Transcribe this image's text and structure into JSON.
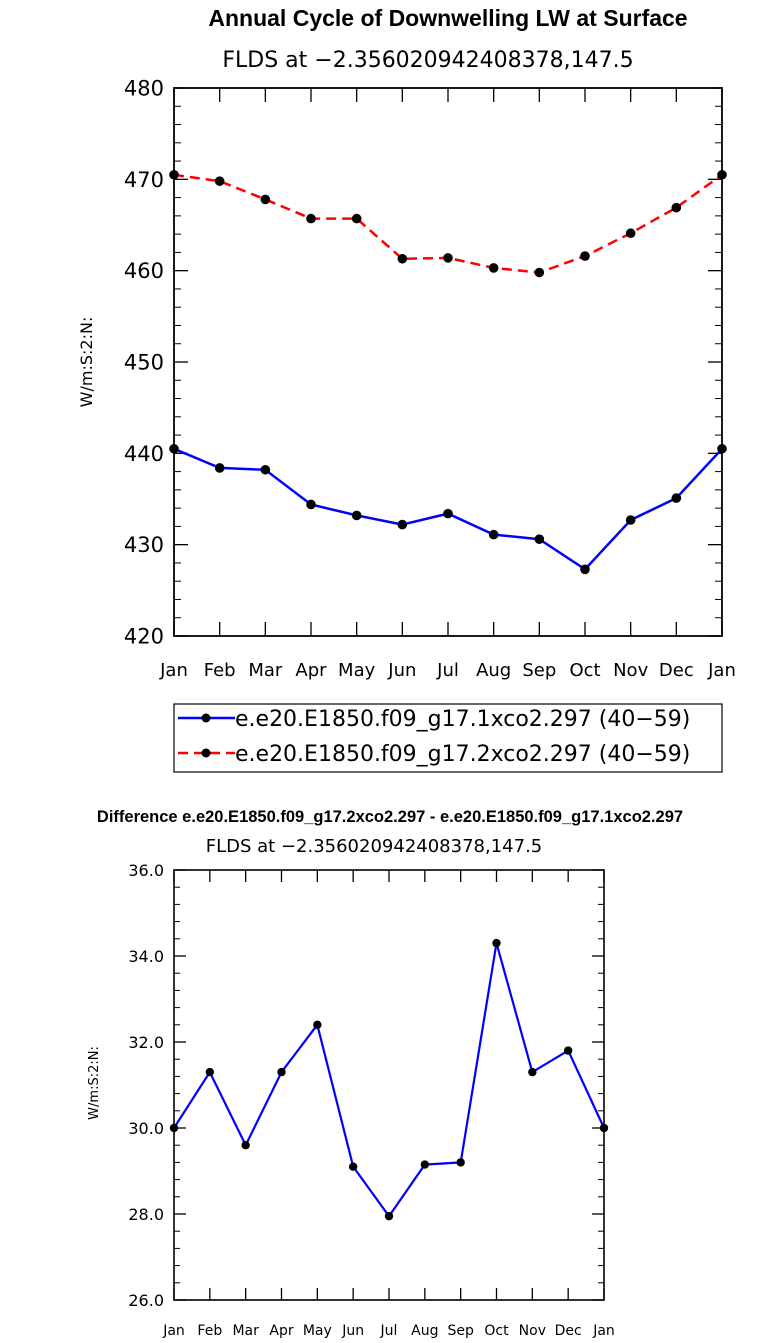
{
  "chart_data": [
    {
      "type": "line",
      "title": "Annual Cycle of Downwelling LW at Surface",
      "subtitle": "FLDS at −2.356020942408378,147.5",
      "ylabel": "W/m:S:2:N:",
      "xlabel": "",
      "categories": [
        "Jan",
        "Feb",
        "Mar",
        "Apr",
        "May",
        "Jun",
        "Jul",
        "Aug",
        "Sep",
        "Oct",
        "Nov",
        "Dec",
        "Jan"
      ],
      "ylim": [
        420,
        480
      ],
      "yticks": [
        "420",
        "430",
        "440",
        "450",
        "460",
        "470",
        "480"
      ],
      "legend_position": "bottom",
      "series": [
        {
          "name": "e.e20.E1850.f09_g17.1xco2.297 (40−59)",
          "color": "#0000ff",
          "dash": "solid",
          "values": [
            440.5,
            438.4,
            438.2,
            434.4,
            433.2,
            432.2,
            433.4,
            431.1,
            430.6,
            427.3,
            432.7,
            435.1,
            440.5
          ]
        },
        {
          "name": "e.e20.E1850.f09_g17.2xco2.297 (40−59)",
          "color": "#ff0000",
          "dash": "dashed",
          "values": [
            470.5,
            469.8,
            467.8,
            465.7,
            465.7,
            461.3,
            461.4,
            460.3,
            459.8,
            461.6,
            464.1,
            466.9,
            470.5
          ]
        }
      ]
    },
    {
      "type": "line",
      "title": "Difference e.e20.E1850.f09_g17.2xco2.297 - e.e20.E1850.f09_g17.1xco2.297",
      "subtitle": "FLDS at −2.356020942408378,147.5",
      "ylabel": "W/m:S:2:N:",
      "xlabel": "",
      "categories": [
        "Jan",
        "Feb",
        "Mar",
        "Apr",
        "May",
        "Jun",
        "Jul",
        "Aug",
        "Sep",
        "Oct",
        "Nov",
        "Dec",
        "Jan"
      ],
      "ylim": [
        26.0,
        36.0
      ],
      "yticks": [
        "26.0",
        "28.0",
        "30.0",
        "32.0",
        "34.0",
        "36.0"
      ],
      "series": [
        {
          "name": "difference",
          "color": "#0000ff",
          "dash": "solid",
          "values": [
            30.0,
            31.3,
            29.6,
            31.3,
            32.4,
            29.1,
            27.95,
            29.15,
            29.2,
            34.3,
            31.3,
            31.8,
            30.0
          ]
        }
      ]
    }
  ]
}
